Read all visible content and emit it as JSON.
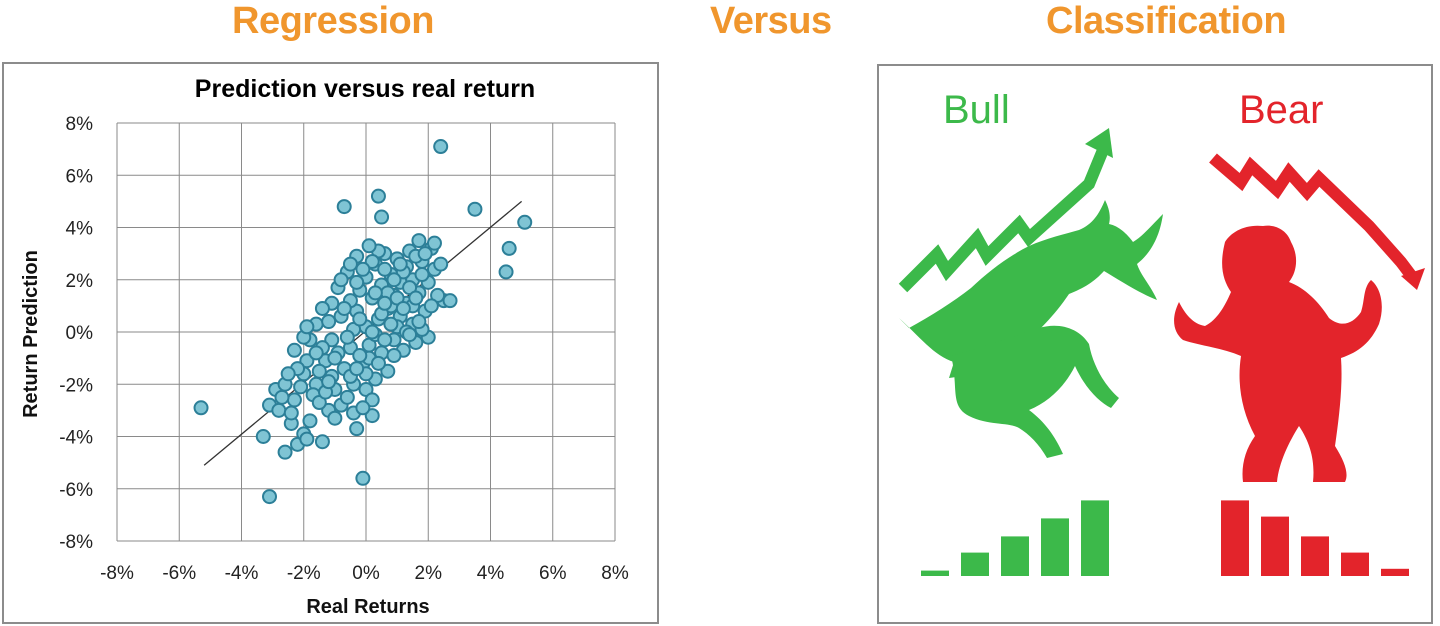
{
  "headings": {
    "regression": "Regression",
    "versus": "Versus",
    "classification": "Classification"
  },
  "chart_data": {
    "type": "scatter",
    "title": "Prediction versus real return",
    "xlabel": "Real Returns",
    "ylabel": "Return Prediction",
    "xlim": [
      -8,
      8
    ],
    "ylim": [
      -8,
      8
    ],
    "xticks": [
      "-8%",
      "-6%",
      "-4%",
      "-2%",
      "0%",
      "2%",
      "4%",
      "6%",
      "8%"
    ],
    "yticks": [
      "8%",
      "6%",
      "4%",
      "2%",
      "0%",
      "-2%",
      "-4%",
      "-6%",
      "-8%"
    ],
    "grid": true,
    "point_color": "#7fc4d4",
    "point_edge": "#2c7f98",
    "trendline": {
      "x": [
        -5.2,
        5.0
      ],
      "y": [
        -5.1,
        5.0
      ]
    },
    "points": [
      [
        -5.3,
        -2.9
      ],
      [
        2.4,
        7.1
      ],
      [
        -0.7,
        4.8
      ],
      [
        0.4,
        5.2
      ],
      [
        0.5,
        4.4
      ],
      [
        3.5,
        4.7
      ],
      [
        5.1,
        4.2
      ],
      [
        4.6,
        3.2
      ],
      [
        4.5,
        2.3
      ],
      [
        2.5,
        1.2
      ],
      [
        2.7,
        1.2
      ],
      [
        -0.1,
        -5.6
      ],
      [
        -3.1,
        -6.3
      ],
      [
        -3.3,
        -4.0
      ],
      [
        -2.6,
        -4.6
      ],
      [
        -2.2,
        -4.3
      ],
      [
        -1.4,
        -4.2
      ],
      [
        -3.1,
        -2.8
      ],
      [
        -2.9,
        -2.2
      ],
      [
        -2.6,
        -2.0
      ],
      [
        -2.3,
        -2.6
      ],
      [
        -2.8,
        -3.0
      ],
      [
        -2.4,
        -3.5
      ],
      [
        -2.0,
        -3.9
      ],
      [
        -1.9,
        -4.1
      ],
      [
        -0.3,
        -3.7
      ],
      [
        0.2,
        -3.2
      ],
      [
        -1.2,
        -3.0
      ],
      [
        -2.3,
        -0.7
      ],
      [
        -2.0,
        -1.6
      ],
      [
        -1.8,
        -0.3
      ],
      [
        -1.6,
        0.3
      ],
      [
        -1.6,
        -2.0
      ],
      [
        -1.3,
        -1.1
      ],
      [
        -1.1,
        -0.3
      ],
      [
        -1.0,
        -2.2
      ],
      [
        -0.8,
        -2.8
      ],
      [
        -0.7,
        -1.4
      ],
      [
        -0.5,
        -0.6
      ],
      [
        -0.4,
        -2.0
      ],
      [
        -0.3,
        0.8
      ],
      [
        -0.2,
        1.6
      ],
      [
        -0.1,
        -1.2
      ],
      [
        0.0,
        0.2
      ],
      [
        0.0,
        2.1
      ],
      [
        0.1,
        -0.5
      ],
      [
        0.2,
        1.3
      ],
      [
        0.3,
        -1.8
      ],
      [
        0.3,
        2.6
      ],
      [
        0.4,
        0.5
      ],
      [
        0.5,
        1.8
      ],
      [
        0.5,
        -0.8
      ],
      [
        0.6,
        3.0
      ],
      [
        0.7,
        0.9
      ],
      [
        0.7,
        -1.5
      ],
      [
        0.8,
        2.2
      ],
      [
        0.9,
        1.4
      ],
      [
        0.9,
        -0.3
      ],
      [
        1.0,
        2.8
      ],
      [
        1.1,
        0.6
      ],
      [
        1.1,
        1.9
      ],
      [
        1.2,
        -0.7
      ],
      [
        1.3,
        2.5
      ],
      [
        1.3,
        1.1
      ],
      [
        1.4,
        3.1
      ],
      [
        1.5,
        0.3
      ],
      [
        1.5,
        2.0
      ],
      [
        1.6,
        -0.4
      ],
      [
        1.7,
        1.5
      ],
      [
        1.7,
        3.5
      ],
      [
        1.8,
        2.7
      ],
      [
        1.9,
        0.8
      ],
      [
        2.0,
        1.9
      ],
      [
        2.1,
        3.2
      ],
      [
        2.2,
        3.4
      ],
      [
        2.2,
        2.4
      ],
      [
        2.3,
        1.4
      ],
      [
        2.0,
        -0.2
      ],
      [
        1.8,
        0.1
      ],
      [
        1.6,
        2.9
      ],
      [
        1.4,
        1.7
      ],
      [
        1.2,
        2.3
      ],
      [
        1.0,
        0.2
      ],
      [
        0.8,
        1.0
      ],
      [
        0.6,
        2.4
      ],
      [
        0.4,
        3.1
      ],
      [
        0.2,
        2.7
      ],
      [
        -0.1,
        2.4
      ],
      [
        -0.3,
        1.9
      ],
      [
        -0.5,
        1.2
      ],
      [
        -0.6,
        2.3
      ],
      [
        -0.8,
        0.6
      ],
      [
        -0.9,
        1.7
      ],
      [
        -1.1,
        1.1
      ],
      [
        -1.2,
        0.4
      ],
      [
        -1.4,
        -0.6
      ],
      [
        -1.5,
        -1.5
      ],
      [
        -1.7,
        -2.4
      ],
      [
        -1.9,
        -1.1
      ],
      [
        -2.1,
        -2.1
      ],
      [
        -2.2,
        -1.4
      ],
      [
        -2.4,
        -3.1
      ],
      [
        -1.8,
        -3.4
      ],
      [
        -1.5,
        -2.7
      ],
      [
        -1.0,
        -3.3
      ],
      [
        -0.6,
        -2.5
      ],
      [
        -0.4,
        -3.1
      ],
      [
        0.0,
        -2.2
      ],
      [
        0.1,
        -1.0
      ],
      [
        0.3,
        -0.1
      ],
      [
        0.5,
        0.7
      ],
      [
        0.7,
        1.5
      ],
      [
        0.9,
        2.0
      ],
      [
        1.1,
        2.6
      ],
      [
        1.3,
        0.0
      ],
      [
        1.5,
        1.0
      ],
      [
        -0.2,
        -0.9
      ],
      [
        -0.4,
        0.1
      ],
      [
        -0.6,
        -0.2
      ],
      [
        -0.9,
        -0.8
      ],
      [
        -1.1,
        -1.7
      ],
      [
        -1.3,
        -2.3
      ],
      [
        -0.7,
        0.9
      ],
      [
        -0.5,
        -1.7
      ],
      [
        0.2,
        0.0
      ],
      [
        0.6,
        -0.3
      ],
      [
        1.0,
        1.3
      ],
      [
        0.4,
        -1.2
      ],
      [
        -0.2,
        0.5
      ],
      [
        -1.6,
        -0.8
      ],
      [
        -2.0,
        -0.2
      ],
      [
        -1.9,
        0.2
      ],
      [
        0.0,
        -1.6
      ],
      [
        0.8,
        0.3
      ],
      [
        1.2,
        0.9
      ],
      [
        1.8,
        2.2
      ],
      [
        2.4,
        2.6
      ],
      [
        -0.8,
        2.0
      ],
      [
        -0.3,
        2.9
      ],
      [
        0.1,
        3.3
      ],
      [
        -1.2,
        -1.9
      ],
      [
        -2.5,
        -1.6
      ],
      [
        -2.7,
        -2.5
      ],
      [
        0.2,
        -2.6
      ],
      [
        -0.1,
        -2.9
      ],
      [
        0.6,
        1.1
      ],
      [
        1.6,
        1.3
      ],
      [
        1.9,
        3.0
      ],
      [
        -0.5,
        2.6
      ],
      [
        0.3,
        1.5
      ],
      [
        -1.4,
        0.9
      ],
      [
        -1.0,
        -1.0
      ],
      [
        -0.3,
        -1.4
      ],
      [
        0.9,
        -0.9
      ],
      [
        1.4,
        -0.1
      ],
      [
        1.7,
        0.4
      ],
      [
        2.1,
        1.0
      ]
    ]
  },
  "classification": {
    "bull_label": "Bull",
    "bear_label": "Bear",
    "bull_color": "#3cb94a",
    "bear_color": "#e3242b",
    "bull_bars": [
      0.06,
      0.26,
      0.44,
      0.64,
      0.84
    ],
    "bear_bars": [
      0.84,
      0.66,
      0.44,
      0.26,
      0.08
    ],
    "bull_icon": "bull-icon",
    "bear_icon": "bear-icon"
  }
}
